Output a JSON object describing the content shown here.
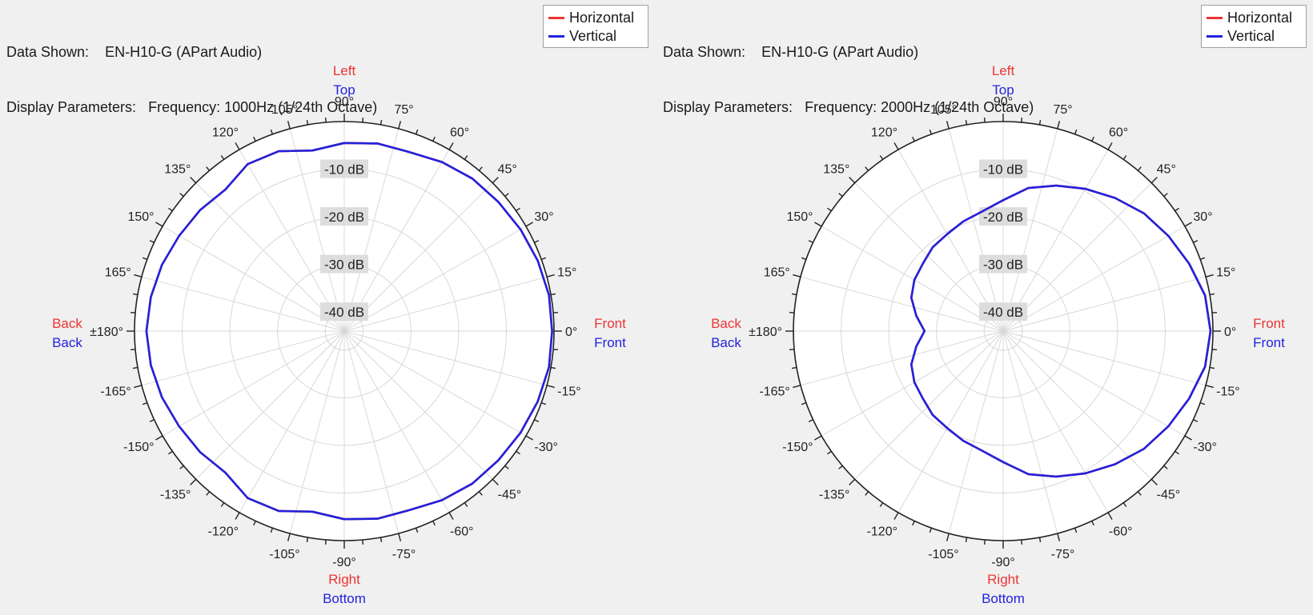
{
  "colors": {
    "horizontal": "#ee3333",
    "vertical": "#2222dd",
    "grid": "#d8d8d8",
    "axis": "#222222"
  },
  "chart_data": [
    {
      "type": "polar",
      "data_shown_label": "Data Shown:",
      "data_shown_value": "EN-H10-G (APart Audio)",
      "display_params_label": "Display Parameters:",
      "display_params_value": "Frequency: 1000Hz (1/24th Octave)",
      "legend": [
        "Horizontal",
        "Vertical"
      ],
      "r_labels": [
        "-10 dB",
        "-20 dB",
        "-30 dB",
        "-40 dB"
      ],
      "r_range_db": [
        -44,
        0
      ],
      "angle_labels": [
        {
          "angle": 0,
          "text": "0°"
        },
        {
          "angle": 15,
          "text": "15°"
        },
        {
          "angle": 30,
          "text": "30°"
        },
        {
          "angle": 45,
          "text": "45°"
        },
        {
          "angle": 60,
          "text": "60°"
        },
        {
          "angle": 75,
          "text": "75°"
        },
        {
          "angle": 90,
          "text": "90°"
        },
        {
          "angle": 105,
          "text": "105°"
        },
        {
          "angle": 120,
          "text": "120°"
        },
        {
          "angle": 135,
          "text": "135°"
        },
        {
          "angle": 150,
          "text": "150°"
        },
        {
          "angle": 165,
          "text": "165°"
        },
        {
          "angle": 180,
          "text": "±180°"
        },
        {
          "angle": -165,
          "text": "-165°"
        },
        {
          "angle": -150,
          "text": "-150°"
        },
        {
          "angle": -135,
          "text": "-135°"
        },
        {
          "angle": -120,
          "text": "-120°"
        },
        {
          "angle": -105,
          "text": "-105°"
        },
        {
          "angle": -90,
          "text": "-90°"
        },
        {
          "angle": -75,
          "text": "-75°"
        },
        {
          "angle": -60,
          "text": "-60°"
        },
        {
          "angle": -45,
          "text": "-45°"
        },
        {
          "angle": -30,
          "text": "-30°"
        },
        {
          "angle": -15,
          "text": "-15°"
        }
      ],
      "direction_labels": {
        "top": [
          "Left",
          "Top"
        ],
        "bottom": [
          "Right",
          "Bottom"
        ],
        "left": [
          "Back",
          "Back"
        ],
        "right": [
          "Front",
          "Front"
        ]
      },
      "series": [
        {
          "name": "Vertical",
          "angles": [
            0,
            10,
            20,
            30,
            40,
            50,
            60,
            70,
            80,
            90,
            100,
            110,
            120,
            130,
            140,
            150,
            160,
            170,
            180,
            -170,
            -160,
            -150,
            -140,
            -130,
            -120,
            -110,
            -100,
            -90,
            -80,
            -70,
            -60,
            -50,
            -40,
            -30,
            -20,
            -10,
            0
          ],
          "values": [
            -0.4,
            -0.4,
            -0.8,
            -1.3,
            -1.8,
            -2.2,
            -3.0,
            -4.0,
            -4.0,
            -4.5,
            -5.5,
            -3.8,
            -3.5,
            -5.2,
            -4.5,
            -4.0,
            -3.3,
            -2.8,
            -2.5,
            -2.8,
            -3.3,
            -4.0,
            -4.5,
            -5.2,
            -3.5,
            -3.8,
            -5.5,
            -4.5,
            -4.0,
            -4.0,
            -3.0,
            -2.2,
            -1.8,
            -1.3,
            -0.8,
            -0.4,
            -0.4
          ]
        },
        {
          "name": "Horizontal",
          "angles": [
            0,
            10,
            20,
            30,
            40,
            50,
            60,
            70,
            80,
            90,
            100,
            110,
            120,
            130,
            140,
            150,
            160,
            170,
            180,
            -170,
            -160,
            -150,
            -140,
            -130,
            -120,
            -110,
            -100,
            -90,
            -80,
            -70,
            -60,
            -50,
            -40,
            -30,
            -20,
            -10,
            0
          ],
          "values": [
            -0.4,
            -0.4,
            -0.8,
            -1.3,
            -1.8,
            -2.2,
            -3.0,
            -4.0,
            -4.0,
            -4.5,
            -5.5,
            -3.8,
            -3.5,
            -5.2,
            -4.5,
            -4.0,
            -3.3,
            -2.8,
            -2.5,
            -2.8,
            -3.3,
            -4.0,
            -4.5,
            -5.2,
            -3.5,
            -3.8,
            -5.5,
            -4.5,
            -4.0,
            -4.0,
            -3.0,
            -2.2,
            -1.8,
            -1.3,
            -0.8,
            -0.4,
            -0.4
          ]
        }
      ]
    },
    {
      "type": "polar",
      "data_shown_label": "Data Shown:",
      "data_shown_value": "EN-H10-G (APart Audio)",
      "display_params_label": "Display Parameters:",
      "display_params_value": "Frequency: 2000Hz (1/24th Octave)",
      "legend": [
        "Horizontal",
        "Vertical"
      ],
      "r_labels": [
        "-10 dB",
        "-20 dB",
        "-30 dB",
        "-40 dB"
      ],
      "r_range_db": [
        -44,
        0
      ],
      "angle_labels": [
        {
          "angle": 0,
          "text": "0°"
        },
        {
          "angle": 15,
          "text": "15°"
        },
        {
          "angle": 30,
          "text": "30°"
        },
        {
          "angle": 45,
          "text": "45°"
        },
        {
          "angle": 60,
          "text": "60°"
        },
        {
          "angle": 75,
          "text": "75°"
        },
        {
          "angle": 90,
          "text": "90°"
        },
        {
          "angle": 105,
          "text": "105°"
        },
        {
          "angle": 120,
          "text": "120°"
        },
        {
          "angle": 135,
          "text": "135°"
        },
        {
          "angle": 150,
          "text": "150°"
        },
        {
          "angle": 165,
          "text": "165°"
        },
        {
          "angle": 180,
          "text": "±180°"
        },
        {
          "angle": -165,
          "text": "-165°"
        },
        {
          "angle": -150,
          "text": "-150°"
        },
        {
          "angle": -135,
          "text": "-135°"
        },
        {
          "angle": -120,
          "text": "-120°"
        },
        {
          "angle": -105,
          "text": "-105°"
        },
        {
          "angle": -90,
          "text": "-90°"
        },
        {
          "angle": -75,
          "text": "-75°"
        },
        {
          "angle": -60,
          "text": "-60°"
        },
        {
          "angle": -45,
          "text": "-45°"
        },
        {
          "angle": -30,
          "text": "-30°"
        },
        {
          "angle": -15,
          "text": "-15°"
        }
      ],
      "direction_labels": {
        "top": [
          "Left",
          "Top"
        ],
        "bottom": [
          "Right",
          "Bottom"
        ],
        "left": [
          "Back",
          "Back"
        ],
        "right": [
          "Front",
          "Front"
        ]
      },
      "series": [
        {
          "name": "Vertical",
          "angles": [
            0,
            10,
            20,
            30,
            40,
            50,
            60,
            70,
            80,
            90,
            100,
            110,
            120,
            130,
            140,
            150,
            160,
            170,
            180,
            -170,
            -160,
            -150,
            -140,
            -130,
            -120,
            -110,
            -100,
            -90,
            -80,
            -70,
            -60,
            -50,
            -40,
            -30,
            -20,
            -10,
            0
          ],
          "values": [
            -0.5,
            -1.0,
            -2.5,
            -4.0,
            -5.5,
            -7.5,
            -9.5,
            -11.5,
            -13.5,
            -16.5,
            -18.5,
            -19.5,
            -20.5,
            -21.0,
            -22.0,
            -22.5,
            -23.5,
            -25.5,
            -27.5,
            -25.5,
            -23.5,
            -22.5,
            -22.0,
            -21.0,
            -20.5,
            -19.5,
            -18.5,
            -16.5,
            -13.5,
            -11.5,
            -9.5,
            -7.5,
            -5.5,
            -4.0,
            -2.5,
            -1.0,
            -0.5
          ]
        },
        {
          "name": "Horizontal",
          "angles": [
            0,
            10,
            20,
            30,
            40,
            50,
            60,
            70,
            80,
            90,
            100,
            110,
            120,
            130,
            140,
            150,
            160,
            170,
            180,
            -170,
            -160,
            -150,
            -140,
            -130,
            -120,
            -110,
            -100,
            -90,
            -80,
            -70,
            -60,
            -50,
            -40,
            -30,
            -20,
            -10,
            0
          ],
          "values": [
            -0.5,
            -1.0,
            -2.5,
            -4.0,
            -5.5,
            -7.5,
            -9.5,
            -11.5,
            -13.5,
            -16.5,
            -18.5,
            -19.5,
            -20.5,
            -21.0,
            -22.0,
            -22.5,
            -23.5,
            -25.5,
            -27.5,
            -25.5,
            -23.5,
            -22.5,
            -22.0,
            -21.0,
            -20.5,
            -19.5,
            -18.5,
            -16.5,
            -13.5,
            -11.5,
            -9.5,
            -7.5,
            -5.5,
            -4.0,
            -2.5,
            -1.0,
            -0.5
          ]
        }
      ]
    }
  ]
}
